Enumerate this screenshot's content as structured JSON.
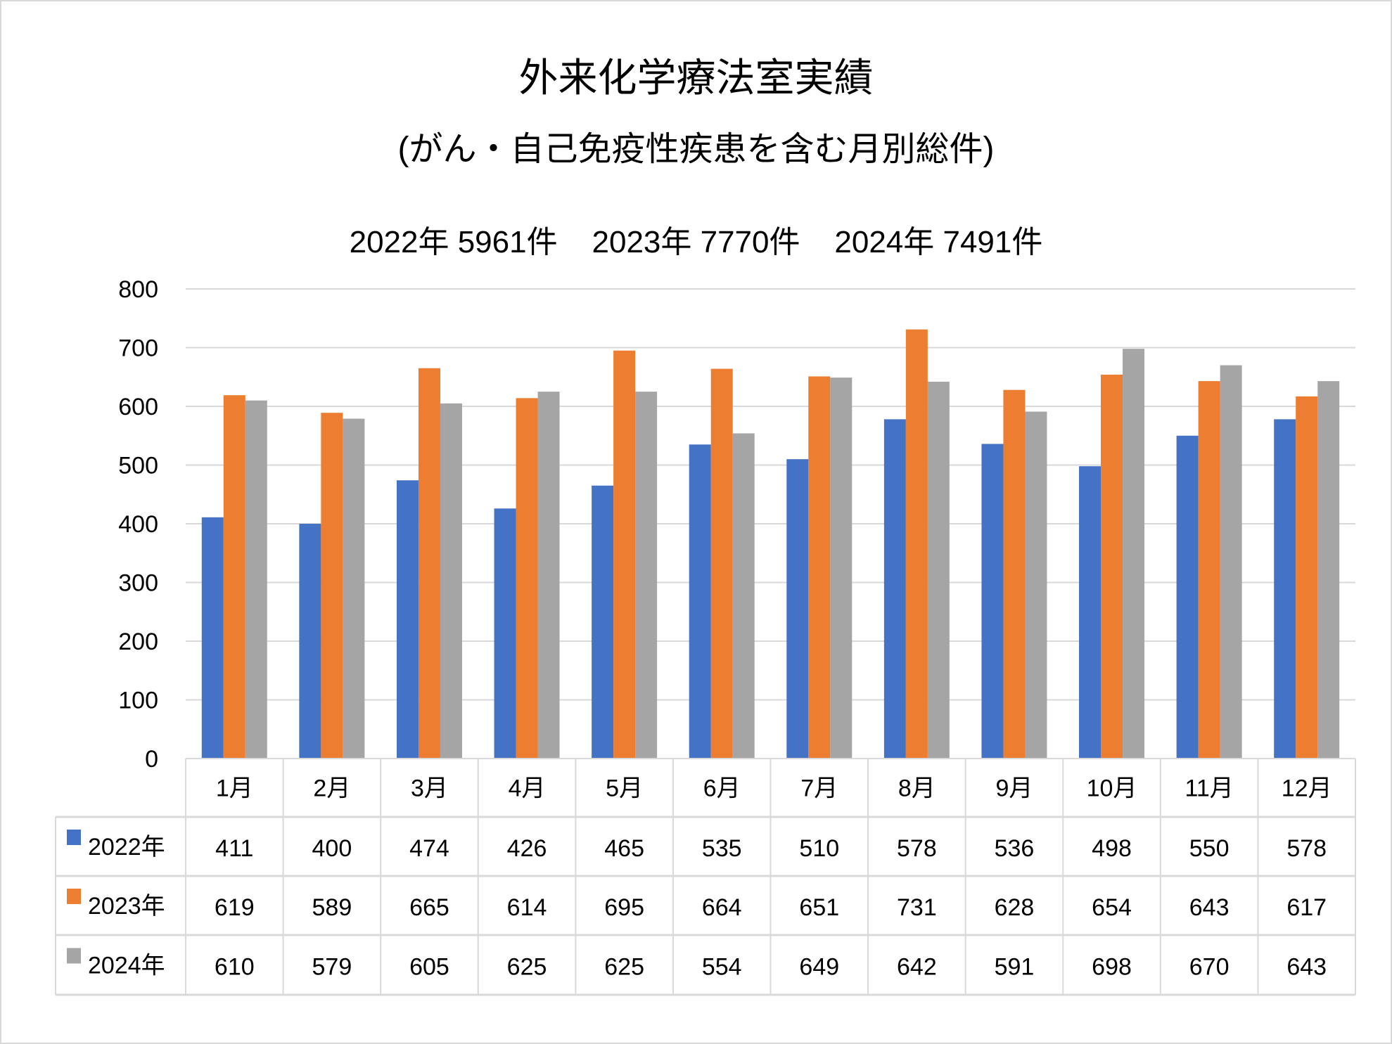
{
  "chart_data": {
    "type": "bar",
    "title": "外来化学療法室実績",
    "subtitle": "(がん・自己免疫性疾患を含む月別総件)",
    "totals_line": "2022年 5961件    2023年 7770件    2024年 7491件",
    "categories": [
      "1月",
      "2月",
      "3月",
      "4月",
      "5月",
      "6月",
      "7月",
      "8月",
      "9月",
      "10月",
      "11月",
      "12月"
    ],
    "series": [
      {
        "name": "2022年",
        "color": "#4472c4",
        "values": [
          411,
          400,
          474,
          426,
          465,
          535,
          510,
          578,
          536,
          498,
          550,
          578
        ]
      },
      {
        "name": "2023年",
        "color": "#ed7d31",
        "values": [
          619,
          589,
          665,
          614,
          695,
          664,
          651,
          731,
          628,
          654,
          643,
          617
        ]
      },
      {
        "name": "2024年",
        "color": "#a5a5a5",
        "values": [
          610,
          579,
          605,
          625,
          625,
          554,
          649,
          642,
          591,
          698,
          670,
          643
        ]
      }
    ],
    "ylim": [
      0,
      800
    ],
    "yticks": [
      0,
      100,
      200,
      300,
      400,
      500,
      600,
      700,
      800
    ],
    "grid": true,
    "legend": "data-table-below"
  }
}
